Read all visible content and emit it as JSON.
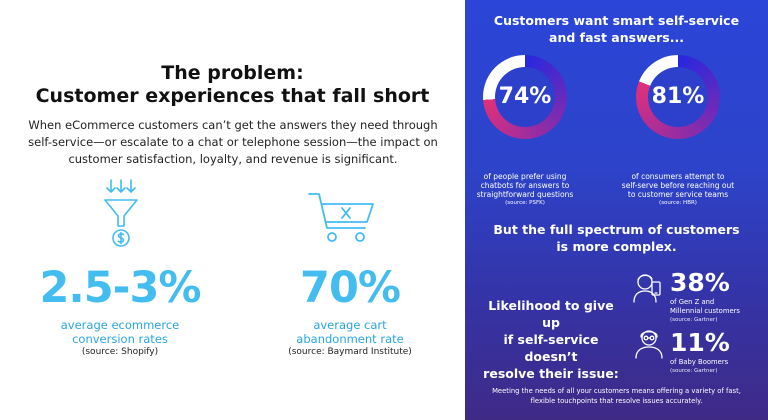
{
  "colors": {
    "accent": "#43bdf0",
    "right_panel_top": "#2b45d8",
    "right_panel_bottom": "#3f2a86",
    "donut_pink": "#e0307a",
    "donut_blue": "#2727e0"
  },
  "left": {
    "title_line1": "The problem:",
    "title_line2": "Customer experiences that fall short",
    "intro": "When eCommerce customers can’t get the answers they need through self-service—or escalate to a chat or telephone session—the impact on customer satisfaction, loyalty, and revenue is significant.",
    "stats": [
      {
        "value": "2.5-3%",
        "caption_line1": "average ecommerce",
        "caption_line2": "conversion rates",
        "source": "(source: Shopify)",
        "icon": "funnel-dollar-icon"
      },
      {
        "value": "70%",
        "caption_line1": "average cart",
        "caption_line2": "abandonment rate",
        "source": "(source: Baymard Institute)",
        "icon": "cart-x-icon"
      }
    ]
  },
  "right": {
    "heading_line1": "Customers want smart self-service",
    "heading_line2": "and fast answers...",
    "donuts": [
      {
        "value": "74%",
        "fraction": 0.74,
        "line1": "of people prefer using",
        "line2": "chatbots for answers to",
        "line3": "straightforward questions",
        "source": "(source: PSFK)"
      },
      {
        "value": "81%",
        "fraction": 0.81,
        "line1": "of consumers attempt to",
        "line2": "self-serve before reaching out",
        "line3": "to customer service teams",
        "source": "(source: HBR)"
      }
    ],
    "spectrum_line1": "But the full spectrum of customers",
    "spectrum_line2": "is more complex.",
    "likelihood_line1": "Likelihood to give up",
    "likelihood_line2": "if self-service doesn’t",
    "likelihood_line3": "resolve their issue:",
    "segments": [
      {
        "value": "38%",
        "line1": "of Gen Z and",
        "line2": "Millennial customers",
        "source": "(source: Gartner)",
        "icon": "young-person-phone-icon"
      },
      {
        "value": "11%",
        "line1": "of Baby Boomers",
        "line2": "",
        "source": "(source: Gartner)",
        "icon": "older-person-icon"
      }
    ],
    "footer": "Meeting the needs of all your customers means offering a variety of fast, flexible touchpoints that resolve issues accurately."
  }
}
